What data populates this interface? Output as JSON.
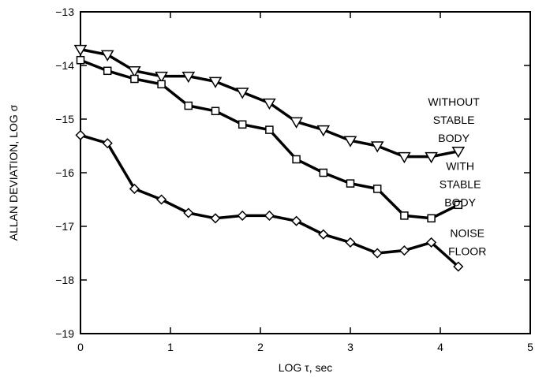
{
  "chart_data": {
    "type": "line",
    "xlabel": "LOG τ, sec",
    "ylabel": "ALLAN DEVIATION, LOG σ",
    "xlim": [
      0,
      5
    ],
    "ylim": [
      -19,
      -13
    ],
    "xticks": [
      "0",
      "1",
      "2",
      "3",
      "4",
      "5"
    ],
    "yticks": [
      "−13",
      "−14",
      "−15",
      "−16",
      "−17",
      "−18",
      "−19"
    ],
    "grid": false,
    "series": [
      {
        "name": "WITHOUT STABLE BODY",
        "marker": "triangle-down",
        "x": [
          0,
          0.3,
          0.6,
          0.9,
          1.2,
          1.5,
          1.8,
          2.1,
          2.4,
          2.7,
          3.0,
          3.3,
          3.6,
          3.9,
          4.2
        ],
        "y": [
          -13.7,
          -13.8,
          -14.1,
          -14.2,
          -14.2,
          -14.3,
          -14.5,
          -14.7,
          -15.05,
          -15.2,
          -15.4,
          -15.5,
          -15.7,
          -15.7,
          -15.6
        ]
      },
      {
        "name": "WITH STABLE BODY",
        "marker": "square",
        "x": [
          0,
          0.3,
          0.6,
          0.9,
          1.2,
          1.5,
          1.8,
          2.1,
          2.4,
          2.7,
          3.0,
          3.3,
          3.6,
          3.9,
          4.2
        ],
        "y": [
          -13.9,
          -14.1,
          -14.25,
          -14.35,
          -14.75,
          -14.85,
          -15.1,
          -15.2,
          -15.75,
          -16.0,
          -16.2,
          -16.3,
          -16.8,
          -16.85,
          -16.6
        ]
      },
      {
        "name": "NOISE FLOOR",
        "marker": "diamond",
        "x": [
          0,
          0.3,
          0.6,
          0.9,
          1.2,
          1.5,
          1.8,
          2.1,
          2.4,
          2.7,
          3.0,
          3.3,
          3.6,
          3.9,
          4.2
        ],
        "y": [
          -15.3,
          -15.45,
          -16.3,
          -16.5,
          -16.75,
          -16.85,
          -16.8,
          -16.8,
          -16.9,
          -17.15,
          -17.3,
          -17.5,
          -17.45,
          -17.3,
          -17.75
        ]
      }
    ],
    "annotations": [
      {
        "series": 0,
        "lines": [
          "WITHOUT",
          "STABLE",
          "BODY"
        ]
      },
      {
        "series": 1,
        "lines": [
          "WITH",
          "STABLE",
          "BODY"
        ]
      },
      {
        "series": 2,
        "lines": [
          "NOISE",
          "FLOOR"
        ]
      }
    ]
  }
}
